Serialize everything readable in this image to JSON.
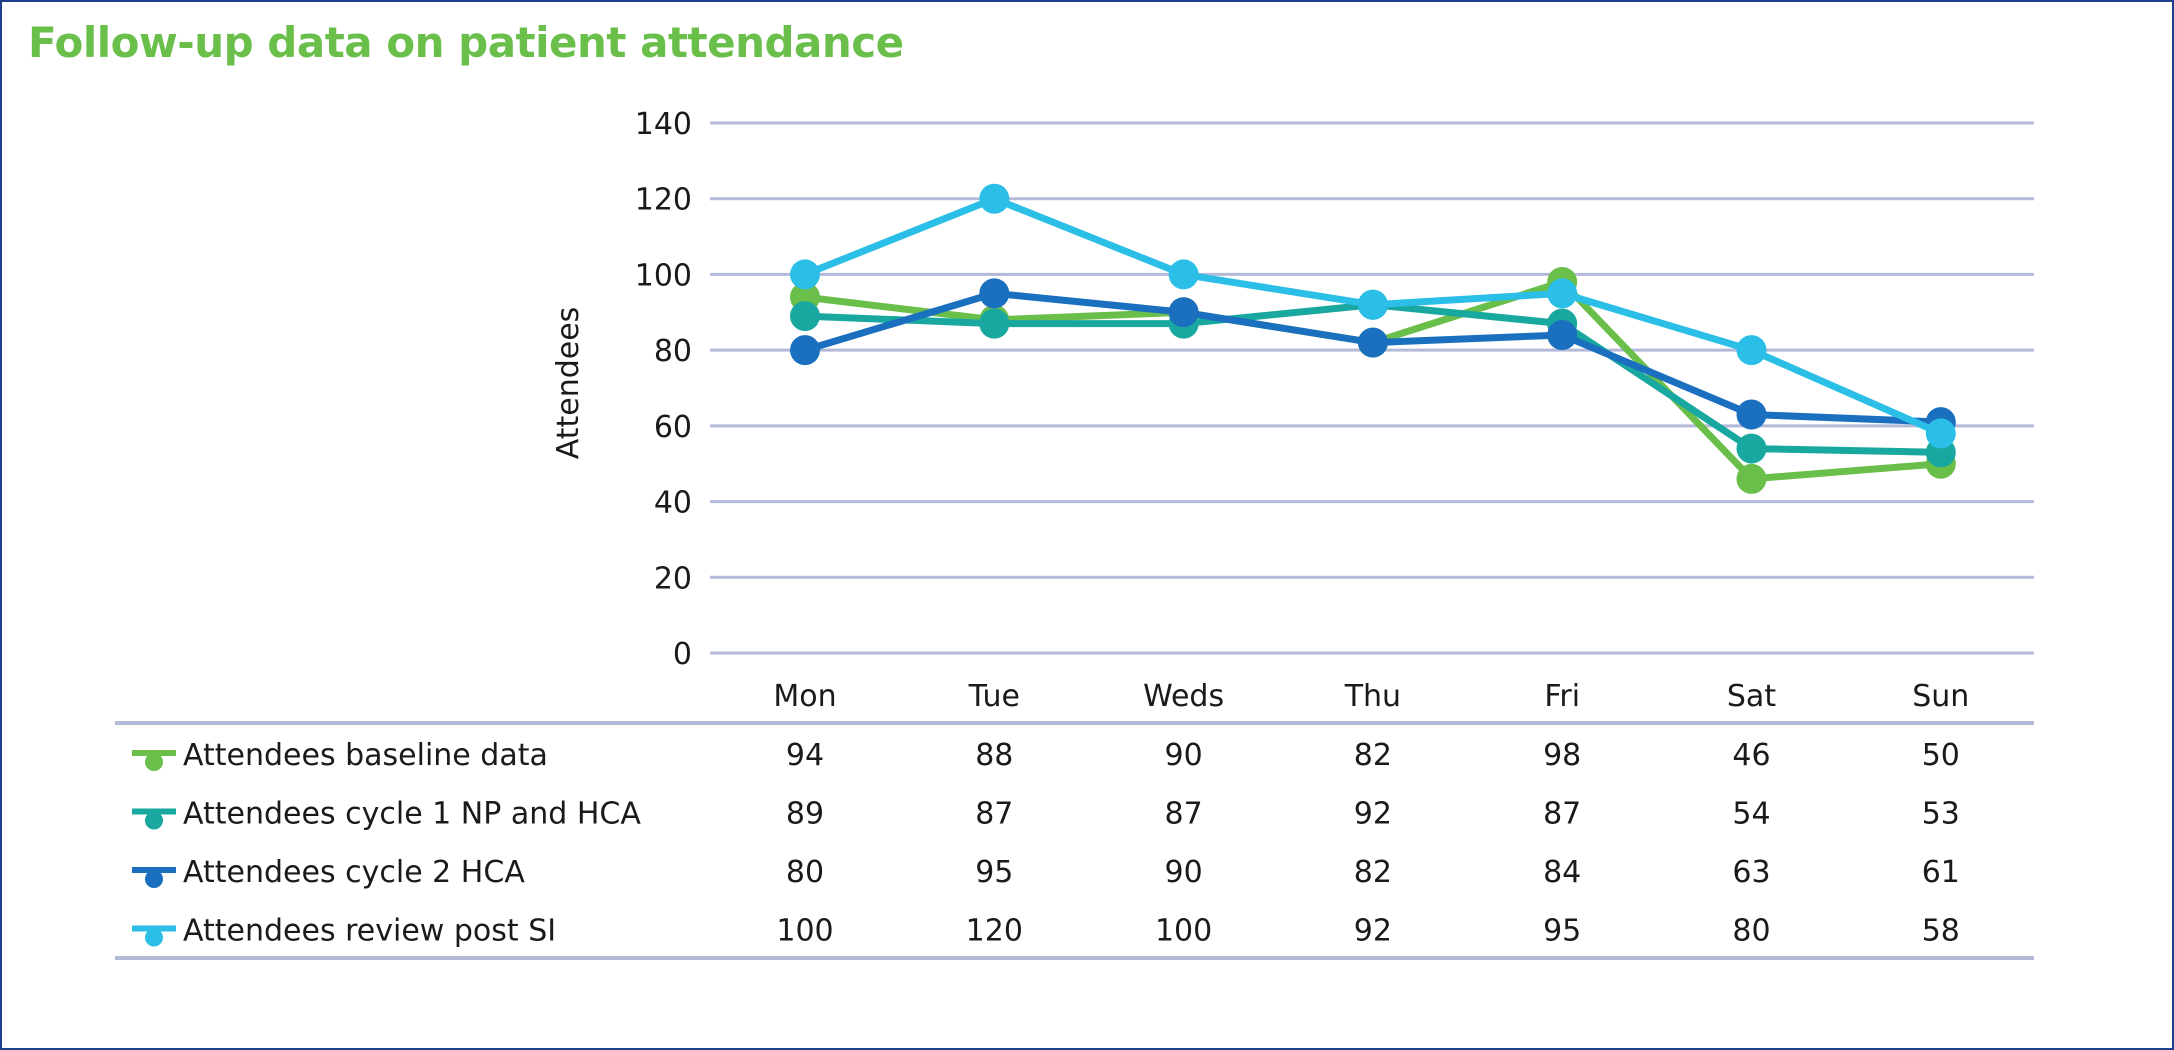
{
  "title": "Follow-up data on patient attendance",
  "colors": {
    "frame": "#1d3f8c",
    "title": "#6abf4b",
    "gridline": "#b3bad8",
    "text": "#1a1a1a"
  },
  "chart_data": {
    "type": "line",
    "title": "Follow-up data on patient attendance",
    "xlabel": "",
    "ylabel": "Attendees",
    "ylim": [
      0,
      140
    ],
    "yticks": [
      0,
      20,
      40,
      60,
      80,
      100,
      120,
      140
    ],
    "grid": true,
    "legend": "data table below chart",
    "categories": [
      "Mon",
      "Tue",
      "Weds",
      "Thu",
      "Fri",
      "Sat",
      "Sun"
    ],
    "series": [
      {
        "name": "Attendees baseline data",
        "color": "#6abf4b",
        "values": [
          94,
          88,
          90,
          82,
          98,
          46,
          50
        ]
      },
      {
        "name": "Attendees cycle 1 NP and HCA",
        "color": "#19a8a0",
        "values": [
          89,
          87,
          87,
          92,
          87,
          54,
          53
        ]
      },
      {
        "name": "Attendees cycle 2 HCA",
        "color": "#1a6fbf",
        "values": [
          80,
          95,
          90,
          82,
          84,
          63,
          61
        ]
      },
      {
        "name": "Attendees review post SI",
        "color": "#2bbfe8",
        "values": [
          100,
          120,
          100,
          92,
          95,
          80,
          58
        ]
      }
    ]
  }
}
